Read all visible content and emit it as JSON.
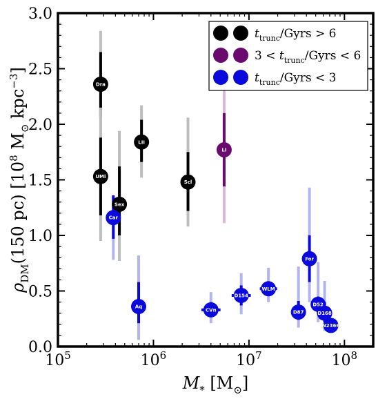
{
  "chart_data": {
    "type": "scatter",
    "xlabel": "M_* [M_⊙]",
    "ylabel": "ρ_DM(150 pc) [10^8 M_⊙ kpc^-3]",
    "x_scale": "log",
    "xlim": [
      100000,
      200000000
    ],
    "ylim": [
      0,
      3.0
    ],
    "x_ticks": [
      {
        "value": 100000,
        "base": "10",
        "exp": "5"
      },
      {
        "value": 1000000,
        "base": "10",
        "exp": "6"
      },
      {
        "value": 10000000,
        "base": "10",
        "exp": "7"
      },
      {
        "value": 100000000,
        "base": "10",
        "exp": "8"
      }
    ],
    "y_ticks": [
      "0.0",
      "0.5",
      "1.0",
      "1.5",
      "2.0",
      "2.5",
      "3.0"
    ],
    "grid": false,
    "legend_position": "top-right",
    "legend": [
      {
        "series": "old",
        "label": "t_trunc/Gyrs > 6",
        "color": "#000000"
      },
      {
        "series": "mid",
        "label": "3 < t_trunc/Gyrs < 6",
        "color": "#6a0a6e"
      },
      {
        "series": "young",
        "label": "t_trunc/Gyrs < 3",
        "color": "#0a0adc"
      }
    ],
    "series_colors": {
      "old": {
        "main": "#000000",
        "light": "#bdbdbd"
      },
      "mid": {
        "main": "#6a0a6e",
        "light": "#d9b8dc"
      },
      "young": {
        "main": "#0a0adc",
        "light": "#b4b4ee"
      }
    },
    "points": [
      {
        "label": "Dra",
        "series": "old",
        "x": 280000,
        "y": 2.36,
        "y68": [
          2.07,
          2.65
        ],
        "y95": [
          1.88,
          2.84
        ],
        "xerr_dex": 0.05
      },
      {
        "label": "UMi",
        "series": "old",
        "x": 280000,
        "y": 1.53,
        "y68": [
          1.18,
          1.88
        ],
        "y95": [
          0.95,
          2.15
        ],
        "xerr_dex": 0.05
      },
      {
        "label": "Sex",
        "series": "old",
        "x": 440000,
        "y": 1.28,
        "y68": [
          1.0,
          1.62
        ],
        "y95": [
          0.77,
          1.94
        ],
        "xerr_dex": 0.06
      },
      {
        "label": "LII",
        "series": "old",
        "x": 750000,
        "y": 1.84,
        "y68": [
          1.66,
          2.04
        ],
        "y95": [
          1.52,
          2.17
        ],
        "xerr_dex": 0.07
      },
      {
        "label": "Scl",
        "series": "old",
        "x": 2300000,
        "y": 1.48,
        "y68": [
          1.22,
          1.75
        ],
        "y95": [
          1.08,
          2.06
        ],
        "xerr_dex": 0.05
      },
      {
        "label": "LI",
        "series": "mid",
        "x": 5500000,
        "y": 1.77,
        "y68": [
          1.44,
          2.1
        ],
        "y95": [
          1.11,
          2.55
        ],
        "xerr_dex": 0.05
      },
      {
        "label": "Car",
        "series": "young",
        "x": 380000,
        "y": 1.16,
        "y68": [
          0.97,
          1.36
        ],
        "y95": [
          0.78,
          1.16
        ],
        "xerr_dex": 0.04
      },
      {
        "label": "Aq",
        "series": "young",
        "x": 700000,
        "y": 0.36,
        "y68": [
          0.21,
          0.58
        ],
        "y95": [
          0.06,
          0.82
        ],
        "xerr_dex": 0.06
      },
      {
        "label": "CVn",
        "series": "young",
        "x": 4000000,
        "y": 0.33,
        "y68": [
          0.27,
          0.4
        ],
        "y95": [
          0.21,
          0.49
        ],
        "xerr_dex": 0.1
      },
      {
        "label": "D154",
        "series": "young",
        "x": 8300000,
        "y": 0.46,
        "y68": [
          0.37,
          0.55
        ],
        "y95": [
          0.29,
          0.66
        ],
        "xerr_dex": 0.1
      },
      {
        "label": "WLM",
        "series": "young",
        "x": 16000000,
        "y": 0.52,
        "y68": [
          0.46,
          0.58
        ],
        "y95": [
          0.4,
          0.71
        ],
        "xerr_dex": 0.09
      },
      {
        "label": "D87",
        "series": "young",
        "x": 33000000,
        "y": 0.31,
        "y68": [
          0.24,
          0.41
        ],
        "y95": [
          0.17,
          0.72
        ],
        "xerr_dex": 0.06
      },
      {
        "label": "For",
        "series": "young",
        "x": 43000000,
        "y": 0.79,
        "y68": [
          0.58,
          1.0
        ],
        "y95": [
          0.4,
          1.43
        ],
        "xerr_dex": 0.05
      },
      {
        "label": "D52",
        "series": "young",
        "x": 53000000,
        "y": 0.38,
        "y68": [
          0.3,
          0.45
        ],
        "y95": [
          0.22,
          0.76
        ],
        "xerr_dex": 0.05
      },
      {
        "label": "D168",
        "series": "young",
        "x": 62000000,
        "y": 0.3,
        "y68": [
          0.22,
          0.4
        ],
        "y95": [
          0.14,
          0.59
        ],
        "xerr_dex": 0.05
      },
      {
        "label": "N2366",
        "series": "young",
        "x": 72000000,
        "y": 0.19,
        "y68": [
          0.16,
          0.22
        ],
        "y95": [
          0.14,
          0.25
        ],
        "xerr_dex": 0.06
      }
    ]
  }
}
